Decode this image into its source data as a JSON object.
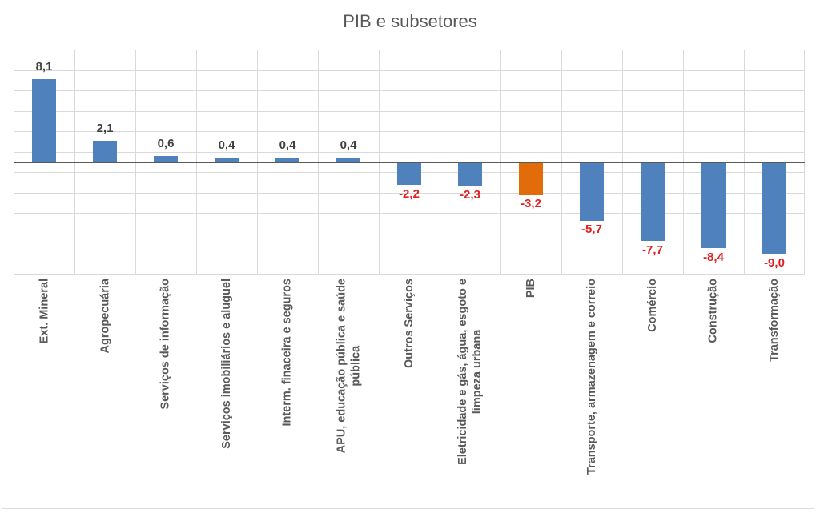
{
  "chart_data": {
    "type": "bar",
    "title": "PIB e subsetores",
    "xlabel": "",
    "ylabel": "",
    "ylim": [
      -11,
      11
    ],
    "grid": true,
    "legend": null,
    "categories": [
      "Ext. Mineral",
      "Agropecuária",
      "Serviços de informação",
      "Serviços imobiliários e aluguel",
      "Interm. finaceira e seguros",
      "APU, educação pública e saúde pública",
      "Outros Serviços",
      "Eletricidade e gás, água, esgoto e limpeza urbana",
      "PIB",
      "Transporte, armazenagem e correio",
      "Comércio",
      "Construção",
      "Transformação"
    ],
    "values": [
      8.1,
      2.1,
      0.6,
      0.4,
      0.4,
      0.4,
      -2.2,
      -2.3,
      -3.2,
      -5.7,
      -7.7,
      -8.4,
      -9.0
    ],
    "value_labels": [
      "8,1",
      "2,1",
      "0,6",
      "0,4",
      "0,4",
      "0,4",
      "-2,2",
      "-2,3",
      "-3,2",
      "-5,7",
      "-7,7",
      "-8,4",
      "-9,0"
    ],
    "label_lines": [
      [
        "Ext. Mineral"
      ],
      [
        "Agropecuária"
      ],
      [
        "Serviços de informação"
      ],
      [
        "Serviços imobiliários e aluguel"
      ],
      [
        "Interm. finaceira e seguros"
      ],
      [
        "APU, educação pública e saúde",
        "pública"
      ],
      [
        "Outros Serviços"
      ],
      [
        "Eletricidade e gás, água, esgoto e",
        "limpeza urbana"
      ],
      [
        "PIB"
      ],
      [
        "Transporte, armazenagem e correio"
      ],
      [
        "Comércio"
      ],
      [
        "Construção"
      ],
      [
        "Transformação"
      ]
    ],
    "highlight_category": "PIB",
    "colors": {
      "bar": "#4f81bd",
      "highlight_bar": "#e36c0a",
      "positive_label": "#404040",
      "negative_label": "#e02020",
      "grid": "#d9d9d9",
      "zero_line": "#595959",
      "title": "#595959",
      "axis_label": "#595959"
    }
  }
}
